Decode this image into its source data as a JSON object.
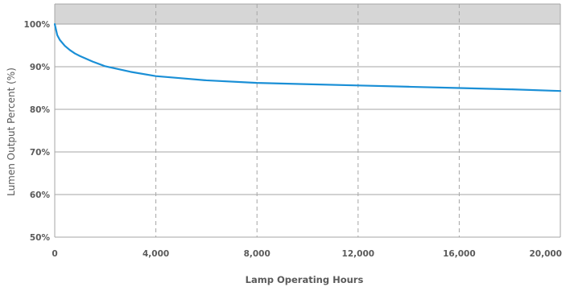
{
  "chart_data": {
    "type": "line",
    "title": "",
    "xlabel": "Lamp Operating Hours",
    "ylabel": "Lumen Output Percent  (%)",
    "xlim": [
      0,
      20000
    ],
    "ylim": [
      50,
      105
    ],
    "x_ticks": [
      0,
      4000,
      8000,
      12000,
      16000,
      20000
    ],
    "x_tick_labels": [
      "0",
      "4,000",
      "8,000",
      "12,000",
      "16,000",
      "20,000"
    ],
    "y_ticks": [
      50,
      60,
      70,
      80,
      90,
      100
    ],
    "y_tick_labels": [
      "50%",
      "60%",
      "70%",
      "80%",
      "90%",
      "100%"
    ],
    "grid": "horizontal solid, vertical dashed",
    "band_above_100": true,
    "colors": {
      "line": "#1a8fd6",
      "grid": "#a6a6a6",
      "band": "#d6d6d6",
      "text": "#5a5a5a"
    },
    "series": [
      {
        "x": [
          0,
          100,
          200,
          400,
          600,
          800,
          1000,
          1500,
          2000,
          3000,
          4000,
          5000,
          6000,
          8000,
          10000,
          12000,
          14000,
          16000,
          18000,
          20000
        ],
        "y": [
          100,
          97.4,
          96.3,
          94.9,
          93.9,
          93.1,
          92.5,
          91.2,
          90.1,
          88.8,
          87.8,
          87.3,
          86.8,
          86.2,
          85.9,
          85.6,
          85.3,
          85.0,
          84.7,
          84.3
        ]
      }
    ]
  }
}
